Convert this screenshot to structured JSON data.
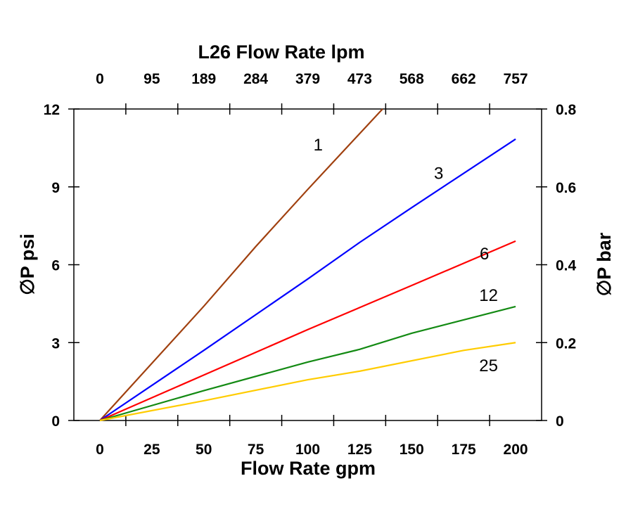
{
  "chart_data": {
    "type": "line",
    "title": "L26 Flow Rate lpm",
    "xlabel": "Flow Rate gpm",
    "ylabel": "∅P psi",
    "y2label": "∅P bar",
    "xlim": [
      -12.5,
      212.5
    ],
    "ylim": [
      0,
      12
    ],
    "y2lim": [
      0,
      0.8
    ],
    "xticks": [
      "0",
      "25",
      "50",
      "75",
      "100",
      "125",
      "150",
      "175",
      "200"
    ],
    "xtick_values": [
      0,
      25,
      50,
      75,
      100,
      125,
      150,
      175,
      200
    ],
    "top_ticks": [
      "0",
      "95",
      "189",
      "284",
      "379",
      "473",
      "568",
      "662",
      "757"
    ],
    "yticks": [
      "0",
      "3",
      "6",
      "9",
      "12"
    ],
    "ytick_values": [
      0,
      3,
      6,
      9,
      12
    ],
    "y2ticks": [
      "0",
      "0.2",
      "0.4",
      "0.6",
      "0.8"
    ],
    "y2tick_values": [
      0,
      0.2,
      0.4,
      0.6,
      0.8
    ],
    "grid": false,
    "series": [
      {
        "name": "1",
        "color": "#a0400f",
        "x": [
          0,
          50,
          75,
          100,
          136
        ],
        "y": [
          0,
          4.4,
          6.7,
          8.9,
          12
        ]
      },
      {
        "name": "3",
        "color": "#0000ff",
        "x": [
          0,
          50,
          100,
          125,
          150,
          200
        ],
        "y": [
          0,
          2.7,
          5.45,
          6.86,
          8.2,
          10.84
        ]
      },
      {
        "name": "6",
        "color": "#ff0000",
        "x": [
          0,
          50,
          100,
          150,
          200
        ],
        "y": [
          0,
          1.75,
          3.5,
          5.2,
          6.91
        ]
      },
      {
        "name": "12",
        "color": "#138a13",
        "x": [
          0,
          50,
          100,
          125,
          150,
          200
        ],
        "y": [
          0,
          1.15,
          2.25,
          2.74,
          3.36,
          4.39
        ]
      },
      {
        "name": "25",
        "color": "#ffcc00",
        "x": [
          0,
          50,
          100,
          125,
          175,
          200
        ],
        "y": [
          0,
          0.76,
          1.57,
          1.9,
          2.7,
          3.0
        ]
      }
    ],
    "annotations": [
      {
        "text": "1",
        "x": 105,
        "y": 10.4
      },
      {
        "text": "3",
        "x": 163,
        "y": 9.3
      },
      {
        "text": "6",
        "x": 185,
        "y": 6.2
      },
      {
        "text": "12",
        "x": 187,
        "y": 4.6
      },
      {
        "text": "25",
        "x": 187,
        "y": 1.9
      }
    ]
  }
}
